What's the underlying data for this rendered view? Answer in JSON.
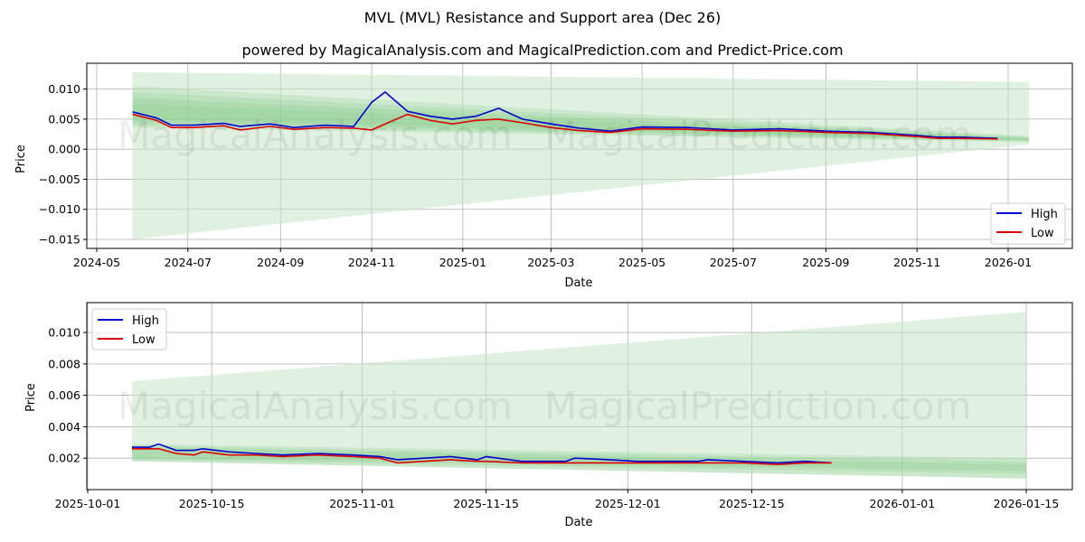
{
  "header": {
    "title": "MVL (MVL) Resistance and Support area (Dec 26)",
    "subtitle": "powered by MagicalAnalysis.com and MagicalPrediction.com and Predict-Price.com"
  },
  "watermarks": [
    "MagicalAnalysis.com",
    "MagicalPrediction.com"
  ],
  "colors": {
    "high": "#0000cc",
    "low": "#dd0000",
    "band_light": "#c8e6c9",
    "band_dark": "#81c784",
    "grid": "#b0b0b0"
  },
  "chart_data": [
    {
      "type": "line",
      "title": "Top panel - full history",
      "xlabel": "Date",
      "ylabel": "Price",
      "x_ticks": [
        "2024-05",
        "2024-07",
        "2024-09",
        "2024-11",
        "2025-01",
        "2025-03",
        "2025-05",
        "2025-07",
        "2025-09",
        "2025-11",
        "2026-01"
      ],
      "y_ticks": [
        "0.010",
        "0.005",
        "0.000",
        "−0.005",
        "−0.010",
        "−0.015"
      ],
      "ylim": [
        -0.0165,
        0.0143
      ],
      "legend": {
        "position": "lower right",
        "entries": [
          "High",
          "Low"
        ]
      },
      "grid": true,
      "x": [
        "2024-05-25",
        "2024-06-10",
        "2024-06-20",
        "2024-07-05",
        "2024-07-25",
        "2024-08-05",
        "2024-08-25",
        "2024-09-10",
        "2024-10-01",
        "2024-10-20",
        "2024-11-01",
        "2024-11-10",
        "2024-11-25",
        "2024-12-10",
        "2024-12-25",
        "2025-01-10",
        "2025-01-25",
        "2025-02-10",
        "2025-03-01",
        "2025-03-20",
        "2025-04-10",
        "2025-05-01",
        "2025-06-01",
        "2025-07-01",
        "2025-08-01",
        "2025-09-01",
        "2025-10-01",
        "2025-11-01",
        "2025-11-15",
        "2025-12-01",
        "2025-12-25"
      ],
      "series": [
        {
          "name": "High",
          "values": [
            0.0062,
            0.0052,
            0.004,
            0.004,
            0.0043,
            0.0038,
            0.0042,
            0.0036,
            0.004,
            0.0038,
            0.0078,
            0.0095,
            0.0063,
            0.0055,
            0.005,
            0.0055,
            0.0068,
            0.005,
            0.0042,
            0.0035,
            0.003,
            0.0037,
            0.0036,
            0.0032,
            0.0034,
            0.003,
            0.0028,
            0.0023,
            0.002,
            0.002,
            0.0018
          ]
        },
        {
          "name": "Low",
          "values": [
            0.0058,
            0.0048,
            0.0036,
            0.0036,
            0.0039,
            0.0032,
            0.0038,
            0.0033,
            0.0036,
            0.0035,
            0.0032,
            0.0042,
            0.0058,
            0.0048,
            0.0042,
            0.0048,
            0.005,
            0.0044,
            0.0036,
            0.0031,
            0.0028,
            0.0034,
            0.0033,
            0.003,
            0.0031,
            0.0028,
            0.0026,
            0.0021,
            0.0018,
            0.0018,
            0.0017
          ]
        }
      ],
      "bands": {
        "outer_upper": [
          [
            "2024-05-25",
            0.0128
          ],
          [
            "2026-01-15",
            0.0112
          ]
        ],
        "outer_lower": [
          [
            "2024-05-25",
            -0.015
          ],
          [
            "2026-01-15",
            0.0008
          ]
        ]
      }
    },
    {
      "type": "line",
      "title": "Bottom panel - recent zoom",
      "xlabel": "Date",
      "ylabel": "Price",
      "x_ticks": [
        "2025-10-01",
        "2025-10-15",
        "2025-11-01",
        "2025-11-15",
        "2025-12-01",
        "2025-12-15",
        "2026-01-01",
        "2026-01-15"
      ],
      "y_ticks": [
        "0.010",
        "0.008",
        "0.006",
        "0.004",
        "0.002"
      ],
      "ylim": [
        0.0,
        0.0119
      ],
      "legend": {
        "position": "upper left",
        "entries": [
          "High",
          "Low"
        ]
      },
      "grid": true,
      "x": [
        "2025-10-06",
        "2025-10-08",
        "2025-10-09",
        "2025-10-11",
        "2025-10-13",
        "2025-10-14",
        "2025-10-17",
        "2025-10-20",
        "2025-10-23",
        "2025-10-27",
        "2025-10-31",
        "2025-11-03",
        "2025-11-05",
        "2025-11-08",
        "2025-11-11",
        "2025-11-14",
        "2025-11-15",
        "2025-11-19",
        "2025-11-24",
        "2025-11-25",
        "2025-11-29",
        "2025-12-02",
        "2025-12-06",
        "2025-12-09",
        "2025-12-10",
        "2025-12-14",
        "2025-12-18",
        "2025-12-21",
        "2025-12-24"
      ],
      "series": [
        {
          "name": "High",
          "values": [
            0.0027,
            0.0027,
            0.0029,
            0.0025,
            0.0025,
            0.0026,
            0.0024,
            0.0023,
            0.0022,
            0.0023,
            0.0022,
            0.0021,
            0.0019,
            0.002,
            0.0021,
            0.0019,
            0.0021,
            0.0018,
            0.0018,
            0.002,
            0.0019,
            0.0018,
            0.0018,
            0.0018,
            0.0019,
            0.0018,
            0.0017,
            0.0018,
            0.0017
          ]
        },
        {
          "name": "Low",
          "values": [
            0.0026,
            0.0026,
            0.0026,
            0.0023,
            0.0022,
            0.0024,
            0.0022,
            0.0022,
            0.0021,
            0.0022,
            0.0021,
            0.002,
            0.0017,
            0.0018,
            0.0019,
            0.0018,
            0.0018,
            0.0017,
            0.0017,
            0.0017,
            0.0017,
            0.0017,
            0.0017,
            0.0017,
            0.0017,
            0.0017,
            0.0016,
            0.0017,
            0.0017
          ]
        }
      ],
      "bands": {
        "outer_upper": [
          [
            "2025-10-06",
            0.0069
          ],
          [
            "2026-01-15",
            0.0113
          ]
        ],
        "outer_lower": [
          [
            "2025-10-06",
            0.0018
          ],
          [
            "2026-01-15",
            0.0007
          ]
        ]
      }
    }
  ]
}
